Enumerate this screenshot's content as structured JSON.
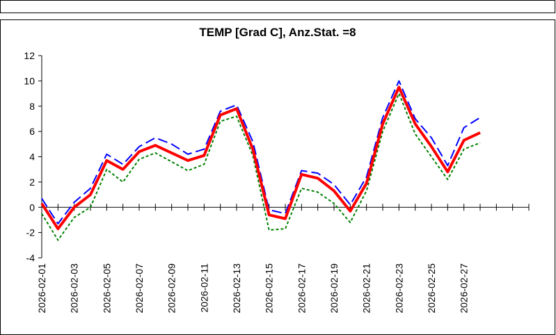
{
  "chart_data": {
    "type": "line",
    "title": "TEMP [Grad C], Anz.Stat. =8",
    "categories": [
      "2026-02-01",
      null,
      "2026-02-03",
      null,
      "2026-02-05",
      null,
      "2026-02-07",
      null,
      "2026-02-09",
      null,
      "2026-02-11",
      null,
      "2026-02-13",
      null,
      "2026-02-15",
      null,
      "2026-02-17",
      null,
      "2026-02-19",
      null,
      "2026-02-21",
      null,
      "2026-02-23",
      null,
      "2026-02-25",
      null,
      "2026-02-27",
      null,
      null,
      null,
      null
    ],
    "series": [
      {
        "color": "#0000ff",
        "dash": "dashed",
        "values": [
          0.7,
          -1.3,
          0.4,
          1.5,
          4.2,
          3.4,
          4.8,
          5.5,
          5.0,
          4.2,
          4.6,
          7.6,
          8.1,
          5.2,
          -0.2,
          -0.5,
          2.9,
          2.7,
          1.8,
          0.2,
          2.4,
          7.1,
          10.0,
          7.0,
          5.5,
          3.3,
          6.3,
          7.1,
          null,
          null,
          null
        ]
      },
      {
        "color": "#008000",
        "dash": "dotted",
        "values": [
          -0.5,
          -2.6,
          -0.8,
          0.0,
          3.0,
          2.0,
          3.8,
          4.3,
          3.6,
          2.9,
          3.4,
          6.8,
          7.2,
          4.1,
          -1.8,
          -1.7,
          1.5,
          1.2,
          0.3,
          -1.2,
          1.3,
          6.0,
          9.0,
          5.8,
          4.0,
          2.2,
          4.6,
          5.1,
          null,
          null,
          null
        ]
      },
      {
        "color": "#ff0000",
        "dash": "solid",
        "values": [
          0.3,
          -1.7,
          0.0,
          1.0,
          3.7,
          3.0,
          4.4,
          4.9,
          4.3,
          3.7,
          4.1,
          7.3,
          7.8,
          4.6,
          -0.6,
          -0.9,
          2.6,
          2.3,
          1.3,
          -0.3,
          1.9,
          6.6,
          9.5,
          6.6,
          4.8,
          2.8,
          5.3,
          5.9,
          null,
          null,
          null
        ]
      }
    ],
    "ylim": [
      -4,
      12
    ],
    "yticks": [
      -4,
      -2,
      0,
      2,
      4,
      6,
      8,
      10,
      12
    ],
    "grid": false
  }
}
